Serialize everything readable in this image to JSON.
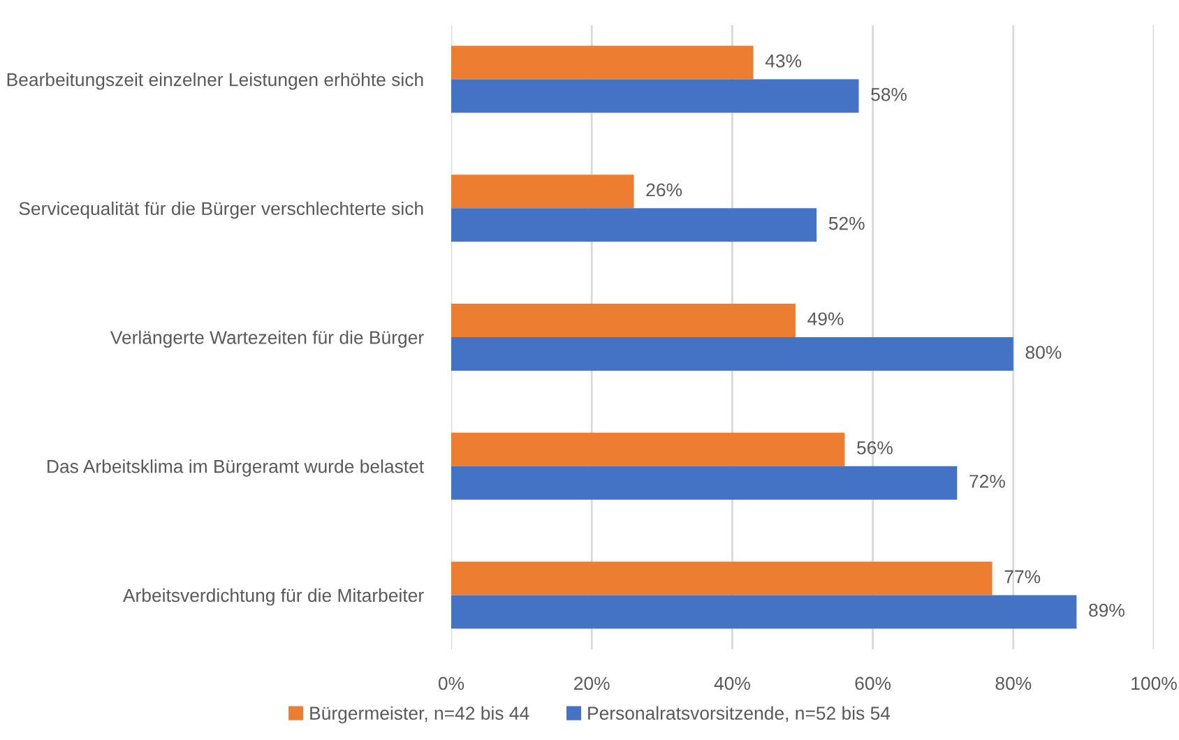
{
  "chart_data": {
    "type": "bar",
    "orientation": "horizontal",
    "categories": [
      "Bearbeitungszeit einzelner Leistungen erhöhte sich",
      "Servicequalität für die Bürger verschlechterte sich",
      "Verlängerte Wartezeiten für die Bürger",
      "Das Arbeitsklima im Bürgeramt wurde belastet",
      "Arbeitsverdichtung für die Mitarbeiter"
    ],
    "series": [
      {
        "name": "Bürgermeister, n=42 bis 44",
        "color": "#ed7d31",
        "values": [
          43,
          26,
          49,
          56,
          77
        ],
        "value_labels": [
          "43%",
          "26%",
          "49%",
          "56%",
          "77%"
        ]
      },
      {
        "name": "Personalratsvorsitzende, n=52 bis 54",
        "color": "#4472c4",
        "values": [
          58,
          52,
          80,
          72,
          89
        ],
        "value_labels": [
          "58%",
          "52%",
          "80%",
          "72%",
          "89%"
        ]
      }
    ],
    "xlim": [
      0,
      100
    ],
    "xticks": [
      {
        "value": 0,
        "label": "0%"
      },
      {
        "value": 20,
        "label": "20%"
      },
      {
        "value": 40,
        "label": "40%"
      },
      {
        "value": 60,
        "label": "60%"
      },
      {
        "value": 80,
        "label": "80%"
      },
      {
        "value": 100,
        "label": "100%"
      }
    ],
    "grid": "x",
    "legend": "bottom"
  }
}
